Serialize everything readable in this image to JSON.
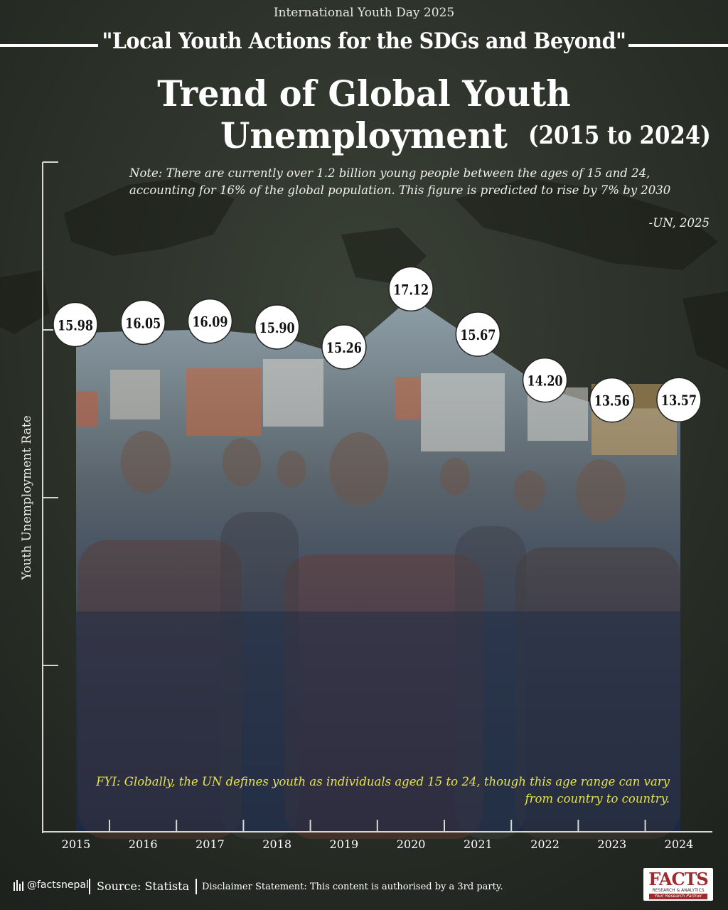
{
  "header": {
    "event": "International Youth Day 2025",
    "theme": "\"Local Youth Actions for the SDGs and Beyond\"",
    "title": "Trend of Global Youth Unemployment",
    "years_range": "(2015 to 2024)"
  },
  "note": {
    "text": "Note: There are currently over 1.2  billion young people between the ages of 15 and 24, accounting for 16% of the global population. This figure is predicted to rise by 7% by 2030",
    "source": "-UN, 2025"
  },
  "fyi": "FYI: Globally, the UN defines youth as individuals aged 15 to 24, though this age range can vary from country to country.",
  "footer": {
    "handle": "@factsnepal",
    "source": "Source: Statista",
    "disclaimer": "Disclaimer Statement: This content is authorised by a 3rd party."
  },
  "logo": {
    "word": "FACTS",
    "subtitle": "RESEARCH & ANALYTICS",
    "tagline": "Your Research Partner"
  },
  "colors": {
    "background": "#262b25",
    "area_top": "#8fa0a8",
    "area_bottom": "#1b2a45",
    "axis": "#d8d8d0",
    "fyi": "#e6e24a",
    "bubble": "#ffffff",
    "logo_red": "#9c2b2b"
  },
  "chart_data": {
    "type": "area",
    "title": "Trend of Global Youth Unemployment",
    "xlabel": "",
    "ylabel": "Youth Unemployment Rate",
    "categories": [
      "2015",
      "2016",
      "2017",
      "2018",
      "2019",
      "2020",
      "2021",
      "2022",
      "2023",
      "2024"
    ],
    "series": [
      {
        "values": [
          15.98,
          16.05,
          16.09,
          15.9,
          15.26,
          17.12,
          15.67,
          14.2,
          13.56,
          13.57
        ],
        "labels": [
          "15.98",
          "16.05",
          "16.09",
          "15.90",
          "15.26",
          "17.12",
          "15.67",
          "14.20",
          "13.56",
          "13.57"
        ]
      }
    ],
    "ylim": [
      0,
      20.5
    ],
    "grid": false,
    "legend": "none",
    "y_ticks_labeled": false
  }
}
